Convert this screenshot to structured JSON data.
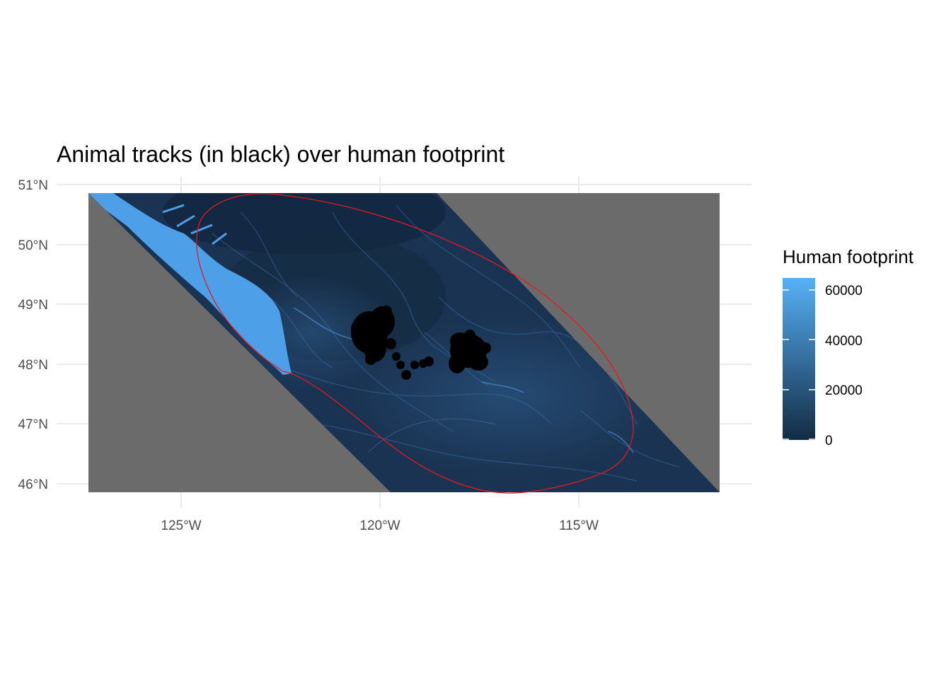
{
  "title": "Animal tracks (in black) over human footprint",
  "legend": {
    "title": "Human footprint",
    "ticks": [
      "0",
      "20000",
      "40000",
      "60000"
    ],
    "low_color": "#132b43",
    "high_color": "#56b1f7"
  },
  "axes": {
    "lon_ticks": [
      "125°W",
      "120°W",
      "115°W"
    ],
    "lat_ticks": [
      "51°N",
      "50°N",
      "49°N",
      "48°N",
      "47°N",
      "46°N"
    ]
  },
  "colors": {
    "no_data": "#6b6b6b",
    "raster_base": "#1a3352",
    "coast_high": "#4d9fe8",
    "tracks": "#000000",
    "home_range": "#e41a1c",
    "grid": "#ebebeb"
  }
}
